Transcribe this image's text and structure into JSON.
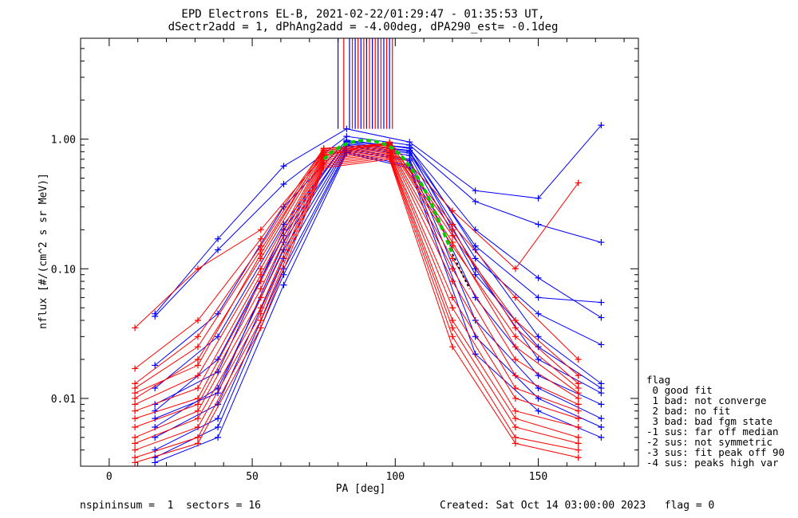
{
  "chart_data": {
    "type": "line",
    "title_line1": "EPD Electrons EL-B, 2021-02-22/01:29:47 - 01:35:53 UT,",
    "title_line2": "dSectr2add = 1, dPhAng2add = -4.00deg, dPA290_est=  -0.1deg",
    "xlabel": "PA [deg]",
    "ylabel": "nflux [#/(cm^2 s sr MeV)]",
    "xlim": [
      -10,
      185
    ],
    "ylim": [
      0.003,
      6
    ],
    "yscale": "log",
    "x_ticks": [
      0,
      50,
      100,
      150
    ],
    "y_ticks": [
      0.01,
      0.1,
      1.0
    ],
    "y_tick_labels": [
      "0.01",
      "0.10",
      "1.00"
    ],
    "colors": {
      "series_a": "#ff0000",
      "series_b": "#0000ff",
      "fit": "#00cc00",
      "fit_black": "#000000"
    },
    "series": [
      {
        "color": "#0000ff",
        "x": [
          16,
          38,
          61,
          83,
          105,
          128,
          150,
          172
        ],
        "y": [
          0.045,
          0.17,
          0.62,
          1.2,
          0.95,
          0.4,
          0.35,
          1.28
        ]
      },
      {
        "color": "#0000ff",
        "x": [
          16,
          38,
          61,
          83,
          105,
          128,
          150,
          172
        ],
        "y": [
          0.043,
          0.14,
          0.45,
          1.05,
          0.9,
          0.33,
          0.22,
          0.16
        ]
      },
      {
        "color": "#0000ff",
        "x": [
          16,
          38,
          61,
          83,
          105,
          128,
          150,
          172
        ],
        "y": [
          0.018,
          0.045,
          0.3,
          0.98,
          0.85,
          0.2,
          0.085,
          0.042
        ]
      },
      {
        "color": "#0000ff",
        "x": [
          16,
          38,
          61,
          83,
          105,
          128,
          150,
          172
        ],
        "y": [
          0.012,
          0.03,
          0.22,
          0.95,
          0.8,
          0.15,
          0.06,
          0.055
        ]
      },
      {
        "color": "#0000ff",
        "x": [
          16,
          38,
          61,
          83,
          105,
          128,
          150,
          172
        ],
        "y": [
          0.008,
          0.02,
          0.18,
          0.9,
          0.78,
          0.12,
          0.045,
          0.026
        ]
      },
      {
        "color": "#0000ff",
        "x": [
          16,
          38,
          61,
          83,
          105,
          128,
          150,
          172
        ],
        "y": [
          0.006,
          0.012,
          0.14,
          0.88,
          0.75,
          0.09,
          0.025,
          0.012
        ]
      },
      {
        "color": "#0000ff",
        "x": [
          16,
          38,
          61,
          83,
          105,
          128,
          150,
          172
        ],
        "y": [
          0.005,
          0.009,
          0.12,
          0.85,
          0.7,
          0.06,
          0.015,
          0.009
        ]
      },
      {
        "color": "#0000ff",
        "x": [
          16,
          38,
          61,
          83,
          105,
          128,
          150,
          172
        ],
        "y": [
          0.004,
          0.007,
          0.1,
          0.82,
          0.68,
          0.04,
          0.012,
          0.007
        ]
      },
      {
        "color": "#0000ff",
        "x": [
          16,
          38,
          61,
          83,
          105,
          128,
          150,
          172
        ],
        "y": [
          0.0035,
          0.006,
          0.09,
          0.8,
          0.62,
          0.03,
          0.01,
          0.006
        ]
      },
      {
        "color": "#0000ff",
        "x": [
          16,
          38,
          61,
          83,
          105,
          128,
          150,
          172
        ],
        "y": [
          0.0032,
          0.005,
          0.075,
          0.78,
          0.6,
          0.022,
          0.008,
          0.005
        ]
      },
      {
        "color": "#0000ff",
        "x": [
          16,
          38,
          61,
          83,
          105,
          128,
          150,
          172
        ],
        "y": [
          0.007,
          0.011,
          0.16,
          0.92,
          0.82,
          0.1,
          0.02,
          0.011
        ]
      },
      {
        "color": "#0000ff",
        "x": [
          16,
          38,
          61,
          83,
          105,
          128,
          150,
          172
        ],
        "y": [
          0.009,
          0.016,
          0.2,
          0.96,
          0.86,
          0.14,
          0.03,
          0.013
        ]
      },
      {
        "color": "#ff0000",
        "x": [
          9,
          31,
          53,
          75,
          98,
          120,
          142,
          164
        ],
        "y": [
          0.035,
          0.1,
          0.2,
          0.75,
          0.95,
          0.28,
          0.1,
          0.46
        ]
      },
      {
        "color": "#ff0000",
        "x": [
          9,
          31,
          53,
          75,
          98,
          120,
          142,
          164
        ],
        "y": [
          0.017,
          0.04,
          0.17,
          0.85,
          0.92,
          0.22,
          0.06,
          0.02
        ]
      },
      {
        "color": "#ff0000",
        "x": [
          9,
          31,
          53,
          75,
          98,
          120,
          142,
          164
        ],
        "y": [
          0.012,
          0.025,
          0.14,
          0.8,
          0.9,
          0.18,
          0.04,
          0.015
        ]
      },
      {
        "color": "#ff0000",
        "x": [
          9,
          31,
          53,
          75,
          98,
          120,
          142,
          164
        ],
        "y": [
          0.01,
          0.02,
          0.12,
          0.78,
          0.88,
          0.15,
          0.03,
          0.012
        ]
      },
      {
        "color": "#ff0000",
        "x": [
          9,
          31,
          53,
          75,
          98,
          120,
          142,
          164
        ],
        "y": [
          0.009,
          0.015,
          0.1,
          0.76,
          0.86,
          0.12,
          0.02,
          0.01
        ]
      },
      {
        "color": "#ff0000",
        "x": [
          9,
          31,
          53,
          75,
          98,
          120,
          142,
          164
        ],
        "y": [
          0.008,
          0.012,
          0.09,
          0.74,
          0.84,
          0.1,
          0.015,
          0.009
        ]
      },
      {
        "color": "#ff0000",
        "x": [
          9,
          31,
          53,
          75,
          98,
          120,
          142,
          164
        ],
        "y": [
          0.007,
          0.01,
          0.08,
          0.72,
          0.82,
          0.08,
          0.012,
          0.008
        ]
      },
      {
        "color": "#ff0000",
        "x": [
          9,
          31,
          53,
          75,
          98,
          120,
          142,
          164
        ],
        "y": [
          0.006,
          0.009,
          0.07,
          0.7,
          0.8,
          0.06,
          0.01,
          0.007
        ]
      },
      {
        "color": "#ff0000",
        "x": [
          9,
          31,
          53,
          75,
          98,
          120,
          142,
          164
        ],
        "y": [
          0.005,
          0.008,
          0.06,
          0.68,
          0.78,
          0.05,
          0.008,
          0.006
        ]
      },
      {
        "color": "#ff0000",
        "x": [
          9,
          31,
          53,
          75,
          98,
          120,
          142,
          164
        ],
        "y": [
          0.0045,
          0.007,
          0.05,
          0.66,
          0.76,
          0.04,
          0.007,
          0.005
        ]
      },
      {
        "color": "#ff0000",
        "x": [
          9,
          31,
          53,
          75,
          98,
          120,
          142,
          164
        ],
        "y": [
          0.004,
          0.006,
          0.045,
          0.64,
          0.74,
          0.035,
          0.006,
          0.0045
        ]
      },
      {
        "color": "#ff0000",
        "x": [
          9,
          31,
          53,
          75,
          98,
          120,
          142,
          164
        ],
        "y": [
          0.0035,
          0.005,
          0.04,
          0.62,
          0.72,
          0.03,
          0.005,
          0.004
        ]
      },
      {
        "color": "#ff0000",
        "x": [
          9,
          31,
          53,
          75,
          98,
          120,
          142,
          164
        ],
        "y": [
          0.0032,
          0.0045,
          0.035,
          0.6,
          0.7,
          0.025,
          0.0045,
          0.0035
        ]
      },
      {
        "color": "#ff0000",
        "x": [
          9,
          31,
          53,
          75,
          98,
          120,
          142,
          164
        ],
        "y": [
          0.011,
          0.018,
          0.13,
          0.82,
          0.91,
          0.16,
          0.025,
          0.011
        ]
      },
      {
        "color": "#ff0000",
        "x": [
          9,
          31,
          53,
          75,
          98,
          120,
          142,
          164
        ],
        "y": [
          0.013,
          0.03,
          0.15,
          0.84,
          0.93,
          0.2,
          0.035,
          0.013
        ]
      }
    ],
    "fit_curve": {
      "color": "#00cc00",
      "x": [
        75,
        78,
        81,
        84,
        87,
        90,
        93,
        96,
        99,
        102,
        105,
        108,
        111,
        114,
        117,
        120
      ],
      "y": [
        0.7,
        0.8,
        0.88,
        0.94,
        0.97,
        0.98,
        0.96,
        0.92,
        0.85,
        0.75,
        0.62,
        0.5,
        0.38,
        0.27,
        0.19,
        0.13
      ]
    },
    "fit_curve_tail": {
      "color": "#000000",
      "x": [
        120,
        123,
        126
      ],
      "y": [
        0.13,
        0.095,
        0.07
      ]
    },
    "vertical_lines": {
      "x": [
        80,
        82,
        84,
        85,
        86,
        87,
        88,
        89,
        90,
        91,
        92,
        93,
        94,
        95,
        96,
        97,
        98,
        99
      ],
      "y_from": 1.2,
      "y_to": 6
    }
  },
  "legend": {
    "title": "flag",
    "items": [
      " 0 good fit",
      " 1 bad: not converge",
      " 2 bad: no fit",
      " 3 bad: bad fgm state",
      "-1 sus: far off median",
      "-2 sus: not symmetric",
      "-3 sus: fit peak off 90",
      "-4 sus: peaks high var"
    ]
  },
  "footer": {
    "left": "nspininsum =  1  sectors = 16",
    "right": "Created: Sat Oct 14 03:00:00 2023   flag = 0"
  }
}
